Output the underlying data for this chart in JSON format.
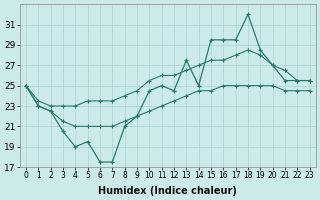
{
  "title": "",
  "xlabel": "Humidex (Indice chaleur)",
  "ylabel": "",
  "x": [
    0,
    1,
    2,
    3,
    4,
    5,
    6,
    7,
    8,
    9,
    10,
    11,
    12,
    13,
    14,
    15,
    16,
    17,
    18,
    19,
    20,
    21,
    22,
    23
  ],
  "line_main": [
    25,
    23,
    22.5,
    20.5,
    19,
    19.5,
    17.5,
    17.5,
    21,
    22,
    24.5,
    25,
    24.5,
    27.5,
    25,
    29.5,
    29.5,
    29.5,
    32,
    28.5,
    27,
    25.5,
    25.5,
    25.5
  ],
  "line_upper": [
    25,
    23.5,
    23,
    23,
    23,
    23.5,
    23.5,
    23.5,
    24,
    24.5,
    25.5,
    26,
    26,
    26.5,
    27,
    27.5,
    27.5,
    28,
    28.5,
    28,
    27,
    26.5,
    25.5,
    25.5
  ],
  "line_lower": [
    25,
    23,
    22.5,
    21.5,
    21,
    21,
    21,
    21,
    21.5,
    22,
    22.5,
    23,
    23.5,
    24,
    24.5,
    24.5,
    25,
    25,
    25,
    25,
    25,
    24.5,
    24.5,
    24.5
  ],
  "line_color": "#2a7a6a",
  "background_color": "#cceae8",
  "grid_color": "#aad4d0",
  "ylim": [
    17,
    33
  ],
  "yticks": [
    17,
    19,
    21,
    23,
    25,
    27,
    29,
    31
  ],
  "xlim": [
    -0.5,
    23.5
  ],
  "xticks": [
    0,
    1,
    2,
    3,
    4,
    5,
    6,
    7,
    8,
    9,
    10,
    11,
    12,
    13,
    14,
    15,
    16,
    17,
    18,
    19,
    20,
    21,
    22,
    23
  ],
  "xlabel_fontsize": 7,
  "tick_fontsize": 5.5,
  "ytick_fontsize": 6.5
}
